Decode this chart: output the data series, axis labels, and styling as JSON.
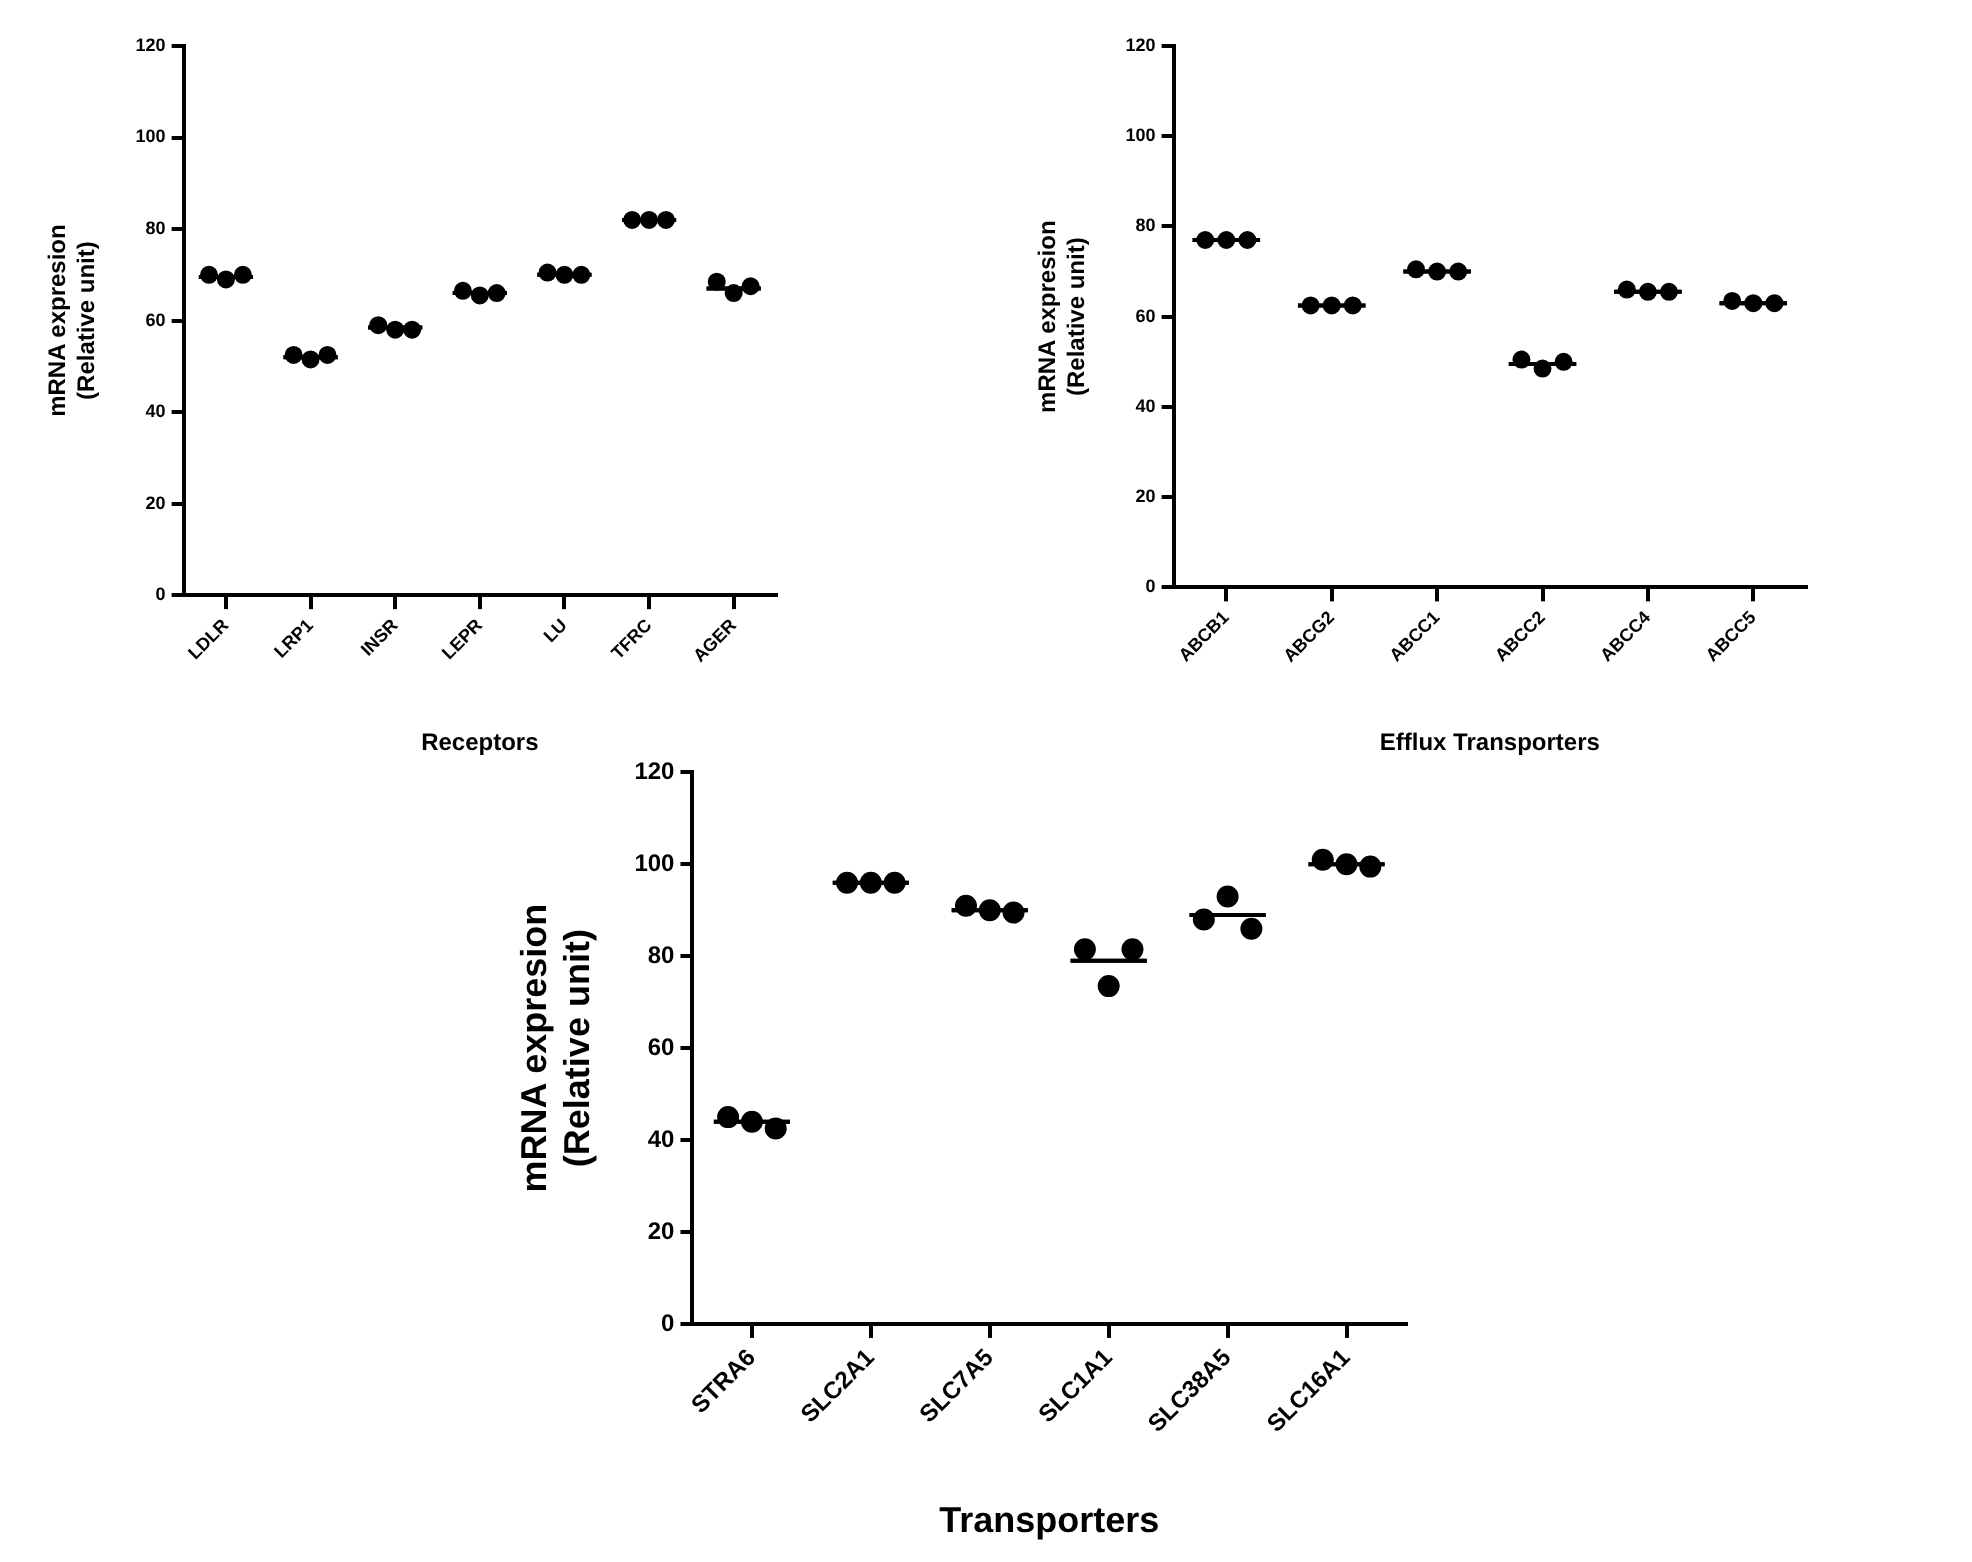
{
  "chart_data": [
    {
      "type": "scatter",
      "xlabel": "Receptors",
      "ylabel": "mRNA expresion\n(Relative unit)",
      "categories": [
        "LDLR",
        "LRP1",
        "INSR",
        "LEPR",
        "LU",
        "TFRC",
        "AGER"
      ],
      "ylim": [
        0,
        120
      ],
      "yticks": [
        0,
        20,
        40,
        60,
        80,
        100,
        120
      ],
      "grid": false,
      "legend": false,
      "marker": "circle",
      "series": [
        {
          "type": "scatter",
          "color": "#000000",
          "x": [
            "LDLR",
            "LDLR",
            "LDLR",
            "LRP1",
            "LRP1",
            "LRP1",
            "INSR",
            "INSR",
            "INSR",
            "LEPR",
            "LEPR",
            "LEPR",
            "LU",
            "LU",
            "LU",
            "TFRC",
            "TFRC",
            "TFRC",
            "AGER",
            "AGER",
            "AGER"
          ],
          "values": [
            70,
            69,
            70,
            52.5,
            51.5,
            52.5,
            59,
            58,
            58,
            66.5,
            65.5,
            66,
            70.5,
            70,
            70,
            82,
            82,
            82,
            68.5,
            66,
            67.5
          ]
        },
        {
          "type": "box",
          "color": "#000000",
          "boxes": [
            {
              "low": 69.5,
              "q1": 69.5,
              "median": 69.5,
              "q3": 69.5,
              "high": 69.5
            },
            {
              "low": 52,
              "q1": 52,
              "median": 52,
              "q3": 52,
              "high": 52
            },
            {
              "low": 58.5,
              "q1": 58.5,
              "median": 58.5,
              "q3": 58.5,
              "high": 58.5
            },
            {
              "low": 66,
              "q1": 66,
              "median": 66,
              "q3": 66,
              "high": 66
            },
            {
              "low": 70,
              "q1": 70,
              "median": 70,
              "q3": 70,
              "high": 70
            },
            {
              "low": 82,
              "q1": 82,
              "median": 82,
              "q3": 82,
              "high": 82
            },
            {
              "low": 67,
              "q1": 67,
              "median": 67,
              "q3": 67,
              "high": 67
            }
          ]
        }
      ]
    },
    {
      "type": "scatter",
      "xlabel": "Efflux Transporters",
      "ylabel": "mRNA expresion\n(Relative unit)",
      "categories": [
        "ABCB1",
        "ABCG2",
        "ABCC1",
        "ABCC2",
        "ABCC4",
        "ABCC5"
      ],
      "ylim": [
        0,
        120
      ],
      "yticks": [
        0,
        20,
        40,
        60,
        80,
        100,
        120
      ],
      "grid": false,
      "legend": false,
      "marker": "circle",
      "series": [
        {
          "type": "scatter",
          "color": "#000000",
          "x": [
            "ABCB1",
            "ABCB1",
            "ABCB1",
            "ABCG2",
            "ABCG2",
            "ABCG2",
            "ABCC1",
            "ABCC1",
            "ABCC1",
            "ABCC2",
            "ABCC2",
            "ABCC2",
            "ABCC4",
            "ABCC4",
            "ABCC4",
            "ABCC5",
            "ABCC5",
            "ABCC5"
          ],
          "values": [
            77,
            77,
            77,
            62.5,
            62.5,
            62.5,
            70.5,
            70,
            70,
            50.5,
            48.5,
            50,
            66,
            65.5,
            65.5,
            63.5,
            63,
            63
          ]
        },
        {
          "type": "box",
          "color": "#000000",
          "boxes": [
            {
              "low": 77,
              "q1": 77,
              "median": 77,
              "q3": 77,
              "high": 77
            },
            {
              "low": 62.5,
              "q1": 62.5,
              "median": 62.5,
              "q3": 62.5,
              "high": 62.5
            },
            {
              "low": 70,
              "q1": 70,
              "median": 70,
              "q3": 70,
              "high": 70
            },
            {
              "low": 49.5,
              "q1": 49.5,
              "median": 49.5,
              "q3": 49.5,
              "high": 49.5
            },
            {
              "low": 65.5,
              "q1": 65.5,
              "median": 65.5,
              "q3": 65.5,
              "high": 65.5
            },
            {
              "low": 63,
              "q1": 63,
              "median": 63,
              "q3": 63,
              "high": 63
            }
          ]
        }
      ]
    },
    {
      "type": "scatter",
      "xlabel": "Transporters",
      "ylabel": "mRNA expresion\n(Relative unit)",
      "categories": [
        "STRA6",
        "SLC2A1",
        "SLC7A5",
        "SLC1A1",
        "SLC38A5",
        "SLC16A1"
      ],
      "ylim": [
        0,
        120
      ],
      "yticks": [
        0,
        20,
        40,
        60,
        80,
        100,
        120
      ],
      "grid": false,
      "legend": false,
      "marker": "circle",
      "series": [
        {
          "type": "scatter",
          "color": "#000000",
          "x": [
            "STRA6",
            "STRA6",
            "STRA6",
            "SLC2A1",
            "SLC2A1",
            "SLC2A1",
            "SLC7A5",
            "SLC7A5",
            "SLC7A5",
            "SLC1A1",
            "SLC1A1",
            "SLC1A1",
            "SLC38A5",
            "SLC38A5",
            "SLC38A5",
            "SLC16A1",
            "SLC16A1",
            "SLC16A1"
          ],
          "values": [
            45,
            44,
            42.5,
            96,
            96,
            96,
            91,
            90,
            89.5,
            81.5,
            73.5,
            81.5,
            88,
            93,
            86,
            101,
            100,
            99.5
          ]
        },
        {
          "type": "box",
          "color": "#000000",
          "boxes": [
            {
              "low": 44,
              "q1": 44,
              "median": 44,
              "q3": 44,
              "high": 44
            },
            {
              "low": 96,
              "q1": 96,
              "median": 96,
              "q3": 96,
              "high": 96
            },
            {
              "low": 90,
              "q1": 90,
              "median": 90,
              "q3": 90,
              "high": 90
            },
            {
              "low": 79,
              "q1": 79,
              "median": 79,
              "q3": 79,
              "high": 79
            },
            {
              "low": 89,
              "q1": 89,
              "median": 89,
              "q3": 89,
              "high": 89
            },
            {
              "low": 100,
              "q1": 100,
              "median": 100,
              "q3": 100,
              "high": 100
            }
          ]
        }
      ]
    }
  ]
}
